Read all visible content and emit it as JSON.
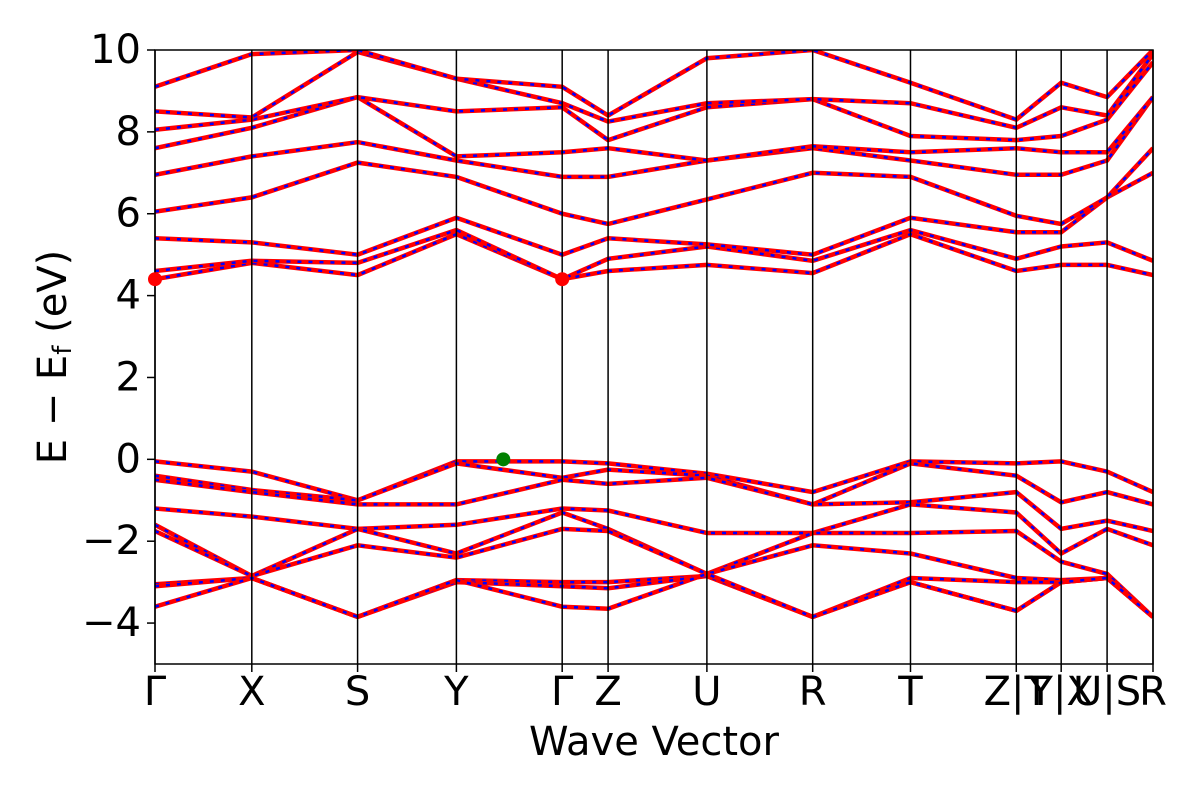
{
  "chart_data": {
    "type": "line",
    "xlabel": "Wave Vector",
    "ylabel": [
      "E − E",
      "f",
      " (eV)"
    ],
    "xlim": [
      0,
      1
    ],
    "ylim": [
      -5,
      10
    ],
    "xticks": [
      {
        "value": 0,
        "label": "Γ"
      },
      {
        "value": 0.097,
        "label": "X"
      },
      {
        "value": 0.203,
        "label": "S"
      },
      {
        "value": 0.302,
        "label": "Y"
      },
      {
        "value": 0.408,
        "label": "Γ"
      },
      {
        "value": 0.454,
        "label": "Z"
      },
      {
        "value": 0.553,
        "label": "U"
      },
      {
        "value": 0.659,
        "label": "R"
      },
      {
        "value": 0.757,
        "label": "T"
      },
      {
        "value": 0.863,
        "label": "Z|T"
      },
      {
        "value": 0.908,
        "label": "Y|X"
      },
      {
        "value": 0.954,
        "label": "U|S"
      },
      {
        "value": 1.0,
        "label": "R"
      }
    ],
    "yticks": [
      {
        "value": -4,
        "label": "−4"
      },
      {
        "value": -2,
        "label": "−2"
      },
      0,
      2,
      4,
      6,
      8,
      10
    ],
    "color": "#ff0000",
    "dash_color": "#0000ff",
    "x": [
      0,
      0.097,
      0.203,
      0.302,
      0.408,
      0.454,
      0.553,
      0.659,
      0.757,
      0.863,
      0.908,
      0.954,
      1.0
    ],
    "series": [
      {
        "values": [
          -0.05,
          -0.3,
          -1.0,
          -0.05,
          -0.05,
          -0.1,
          -0.35,
          -0.8,
          -0.05,
          -0.1,
          -0.05,
          -0.3,
          -0.8
        ]
      },
      {
        "values": [
          -0.4,
          -0.75,
          -1.0,
          -0.1,
          -0.45,
          -0.25,
          -0.4,
          -1.1,
          -0.1,
          -0.4,
          -1.05,
          -0.8,
          -1.1
        ]
      },
      {
        "values": [
          -0.5,
          -0.8,
          -1.1,
          -1.1,
          -0.5,
          -0.6,
          -0.45,
          -1.1,
          -1.05,
          -0.8,
          -1.7,
          -1.5,
          -1.75
        ]
      },
      {
        "values": [
          -1.2,
          -1.4,
          -1.7,
          -1.6,
          -1.2,
          -1.25,
          -1.8,
          -1.8,
          -1.1,
          -1.3,
          -2.3,
          -1.7,
          -2.1
        ]
      },
      {
        "values": [
          -1.6,
          -2.85,
          -1.7,
          -2.3,
          -1.3,
          -1.7,
          -2.8,
          -1.8,
          -1.8,
          -1.75,
          -2.5,
          -2.8,
          -3.85
        ]
      },
      {
        "values": [
          -1.75,
          -2.85,
          -2.1,
          -2.4,
          -1.7,
          -1.75,
          -2.8,
          -2.1,
          -2.3,
          -2.9,
          -2.95,
          -2.9,
          -3.85
        ]
      },
      {
        "values": [
          -3.05,
          -2.9,
          -3.85,
          -2.95,
          -3.0,
          -3.0,
          -2.85,
          -3.85,
          -2.9,
          -3.0,
          -3.0,
          -2.9,
          -3.85
        ]
      },
      {
        "values": [
          -3.1,
          -2.9,
          -3.85,
          -3.0,
          -3.1,
          -3.15,
          -2.85,
          -3.85,
          -3.0,
          -3.7,
          -3.0,
          -2.9,
          -3.85
        ]
      },
      {
        "values": [
          -3.6,
          -2.9,
          -3.85,
          -2.95,
          -3.6,
          -3.65,
          -2.8,
          -3.85,
          -3.0,
          -3.7,
          -3.0,
          -2.9,
          -3.85
        ]
      },
      {
        "values": [
          4.4,
          4.8,
          4.5,
          5.5,
          4.4,
          4.6,
          4.75,
          4.55,
          5.5,
          4.6,
          4.75,
          4.75,
          4.5
        ]
      },
      {
        "values": [
          4.6,
          4.85,
          4.8,
          5.6,
          4.4,
          4.9,
          5.2,
          4.85,
          5.6,
          4.9,
          5.2,
          5.3,
          4.85
        ]
      },
      {
        "values": [
          5.4,
          5.3,
          5.0,
          5.9,
          5.0,
          5.4,
          5.25,
          5.0,
          5.9,
          5.55,
          5.55,
          6.4,
          7.0
        ]
      },
      {
        "values": [
          6.05,
          6.4,
          7.25,
          6.9,
          6.0,
          5.75,
          6.35,
          7.0,
          6.9,
          5.95,
          5.75,
          6.4,
          7.6
        ]
      },
      {
        "values": [
          6.95,
          7.4,
          7.75,
          7.3,
          6.9,
          6.9,
          7.3,
          7.6,
          7.3,
          6.95,
          6.95,
          7.3,
          8.85
        ]
      },
      {
        "values": [
          7.6,
          8.1,
          8.85,
          7.4,
          7.5,
          7.6,
          7.3,
          7.65,
          7.5,
          7.6,
          7.5,
          7.5,
          8.85
        ]
      },
      {
        "values": [
          8.05,
          8.3,
          8.85,
          8.5,
          8.6,
          7.8,
          8.6,
          8.8,
          7.9,
          7.8,
          7.9,
          8.3,
          9.7
        ]
      },
      {
        "values": [
          8.5,
          8.35,
          9.95,
          9.3,
          8.7,
          8.25,
          8.7,
          8.8,
          8.7,
          8.1,
          8.6,
          8.4,
          9.9
        ]
      },
      {
        "values": [
          9.1,
          9.9,
          10.0,
          9.3,
          9.1,
          8.4,
          9.8,
          10.0,
          9.2,
          8.3,
          9.2,
          8.85,
          10.0
        ]
      }
    ],
    "markers": [
      {
        "x": 0,
        "y": 4.4,
        "color": "#ff0000"
      },
      {
        "x": 0.408,
        "y": 4.4,
        "color": "#ff0000"
      },
      {
        "x": 0.349,
        "y": 0.0,
        "color": "#008000"
      }
    ]
  }
}
